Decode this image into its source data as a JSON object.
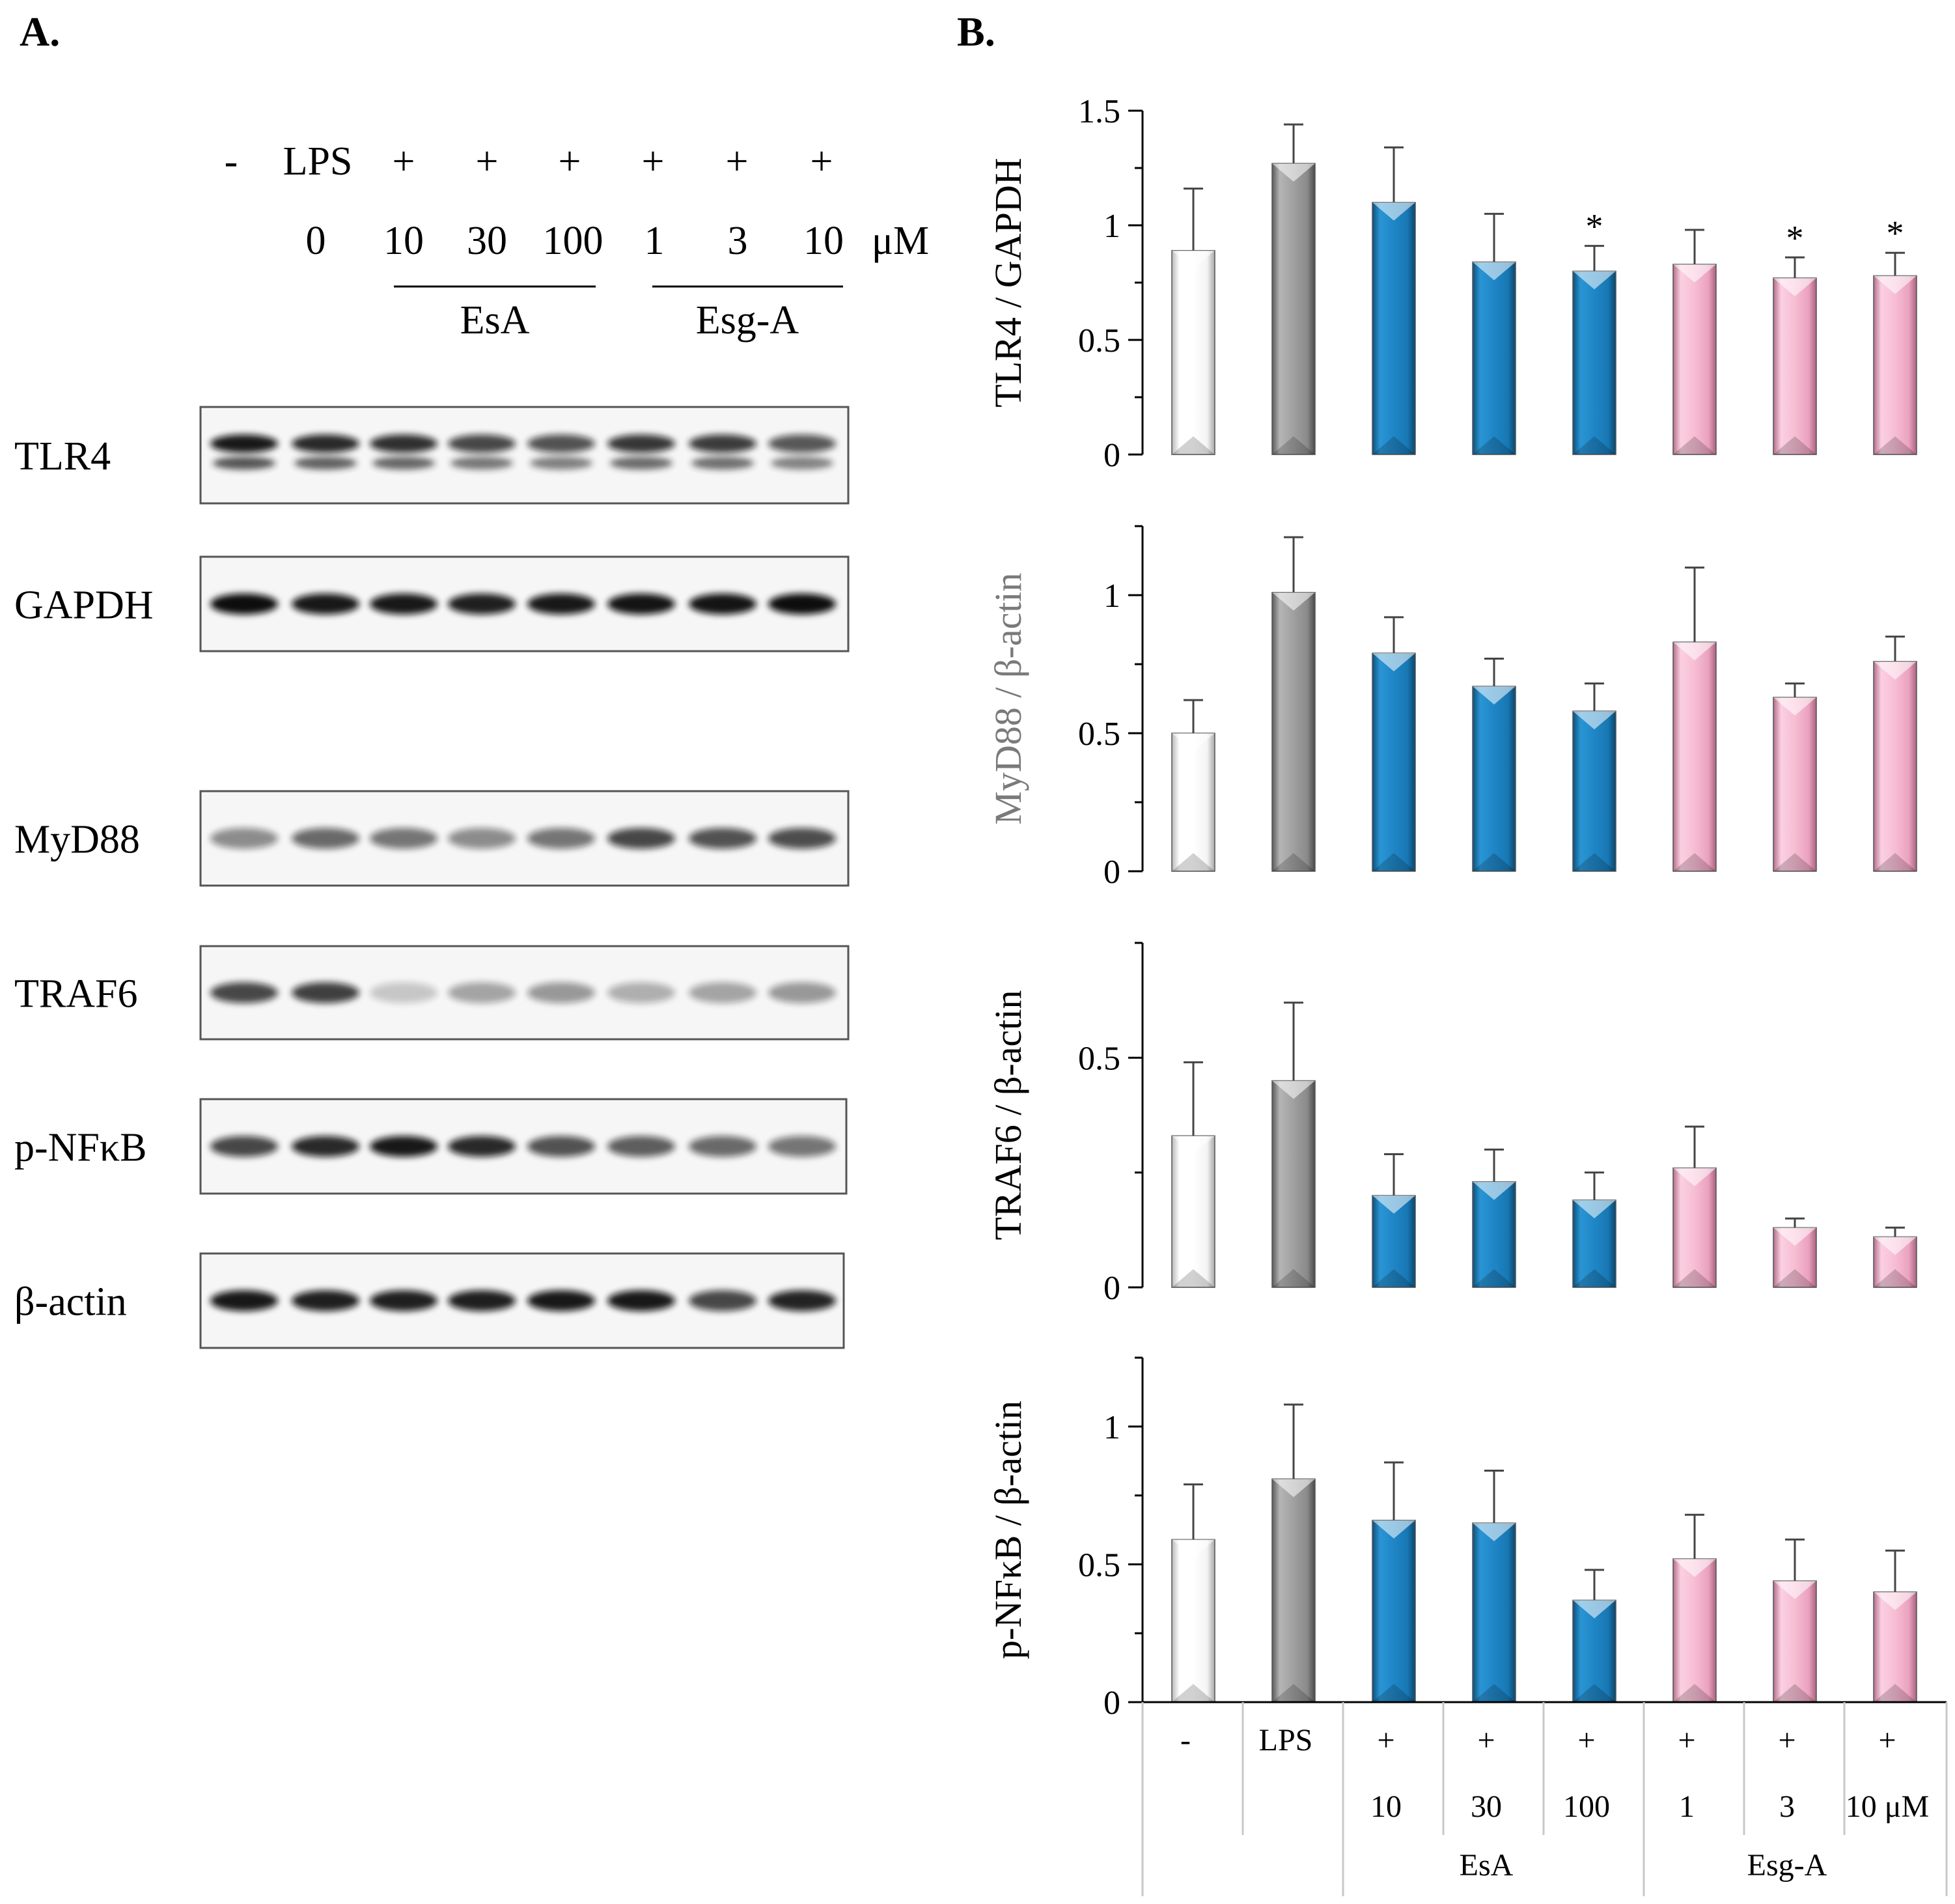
{
  "panel_a": {
    "label": "A.",
    "header": {
      "row1": [
        "-",
        "LPS",
        "+",
        "+",
        "+",
        "+",
        "+",
        "+"
      ],
      "row2": [
        "0",
        "10",
        "30",
        "100",
        "1",
        "3",
        "10",
        "μM"
      ],
      "groups": [
        "EsA",
        "Esg-A"
      ]
    },
    "blots": [
      {
        "name": "TLR4",
        "intensity": [
          0.95,
          0.88,
          0.85,
          0.75,
          0.7,
          0.82,
          0.8,
          0.68
        ],
        "double": true
      },
      {
        "name": "GAPDH",
        "intensity": [
          1.0,
          0.95,
          0.95,
          0.92,
          0.95,
          0.97,
          0.97,
          1.0
        ],
        "double": false
      },
      {
        "name": "MyD88",
        "intensity": [
          0.45,
          0.6,
          0.55,
          0.45,
          0.55,
          0.75,
          0.7,
          0.72
        ],
        "double": false
      },
      {
        "name": "TRAF6",
        "intensity": [
          0.75,
          0.78,
          0.2,
          0.35,
          0.4,
          0.3,
          0.35,
          0.4
        ],
        "double": false
      },
      {
        "name": "p-NFκB",
        "intensity": [
          0.75,
          0.88,
          0.95,
          0.88,
          0.7,
          0.65,
          0.6,
          0.55
        ],
        "double": false
      },
      {
        "name": "β-actin",
        "intensity": [
          0.95,
          0.92,
          0.92,
          0.92,
          0.95,
          0.95,
          0.75,
          0.9
        ],
        "double": false
      }
    ]
  },
  "panel_b": {
    "label": "B."
  },
  "x_table": {
    "row1": [
      "-",
      "LPS",
      "+",
      "+",
      "+",
      "+",
      "+",
      "+"
    ],
    "row2": [
      "",
      "",
      "10",
      "30",
      "100",
      "1",
      "3",
      "10 μM"
    ],
    "groups": [
      {
        "label": "EsA",
        "from": 2,
        "to": 4
      },
      {
        "label": "Esg-A",
        "from": 5,
        "to": 7
      }
    ]
  },
  "bar_colors": [
    "#f2f2f2",
    "#8c8c8c",
    "#1b7fbd",
    "#f4b5cf"
  ],
  "chart_data": [
    {
      "type": "bar",
      "ylabel": "TLR4 / GAPDH",
      "ylim": [
        0,
        1.5
      ],
      "yticks": [
        0,
        0.5,
        1,
        1.5
      ],
      "tick_labels": [
        "0",
        "0.5",
        "1",
        "1.5"
      ],
      "categories": [
        "-",
        "LPS",
        "EsA 10",
        "EsA 30",
        "EsA 100",
        "Esg-A 1",
        "Esg-A 3",
        "Esg-A 10"
      ],
      "values": [
        0.89,
        1.27,
        1.1,
        0.84,
        0.8,
        0.83,
        0.77,
        0.78
      ],
      "errors": [
        0.27,
        0.17,
        0.24,
        0.21,
        0.11,
        0.15,
        0.09,
        0.1
      ],
      "significance": [
        "",
        "",
        "",
        "",
        "*",
        "",
        "*",
        "*"
      ]
    },
    {
      "type": "bar",
      "ylabel": "MyD88 / β-actin",
      "ylim": [
        0,
        1.25
      ],
      "yticks": [
        0,
        0.5,
        1
      ],
      "tick_labels": [
        "0",
        "0.5",
        "1"
      ],
      "categories": [
        "-",
        "LPS",
        "EsA 10",
        "EsA 30",
        "EsA 100",
        "Esg-A 1",
        "Esg-A 3",
        "Esg-A 10"
      ],
      "values": [
        0.5,
        1.01,
        0.79,
        0.67,
        0.58,
        0.83,
        0.63,
        0.76
      ],
      "errors": [
        0.12,
        0.2,
        0.13,
        0.1,
        0.1,
        0.27,
        0.05,
        0.09
      ],
      "significance": [
        "",
        "",
        "",
        "",
        "",
        "",
        "",
        ""
      ]
    },
    {
      "type": "bar",
      "ylabel": "TRAF6 / β-actin",
      "ylim": [
        0,
        0.75
      ],
      "yticks": [
        0,
        0.5
      ],
      "tick_labels": [
        "0",
        "0.5"
      ],
      "categories": [
        "-",
        "LPS",
        "EsA 10",
        "EsA 30",
        "EsA 100",
        "Esg-A 1",
        "Esg-A 3",
        "Esg-A 10"
      ],
      "values": [
        0.33,
        0.45,
        0.2,
        0.23,
        0.19,
        0.26,
        0.13,
        0.11
      ],
      "errors": [
        0.16,
        0.17,
        0.09,
        0.07,
        0.06,
        0.09,
        0.02,
        0.02
      ],
      "significance": [
        "",
        "",
        "",
        "",
        "",
        "",
        "",
        ""
      ]
    },
    {
      "type": "bar",
      "ylabel": "p-NFκB / β-actin",
      "ylim": [
        0,
        1.25
      ],
      "yticks": [
        0,
        0.5,
        1
      ],
      "tick_labels": [
        "0",
        "0.5",
        "1"
      ],
      "categories": [
        "-",
        "LPS",
        "EsA 10",
        "EsA 30",
        "EsA 100",
        "Esg-A 1",
        "Esg-A 3",
        "Esg-A 10"
      ],
      "values": [
        0.59,
        0.81,
        0.66,
        0.65,
        0.37,
        0.52,
        0.44,
        0.4
      ],
      "errors": [
        0.2,
        0.27,
        0.21,
        0.19,
        0.11,
        0.16,
        0.15,
        0.15
      ],
      "significance": [
        "",
        "",
        "",
        "",
        "",
        "",
        "",
        ""
      ]
    }
  ]
}
